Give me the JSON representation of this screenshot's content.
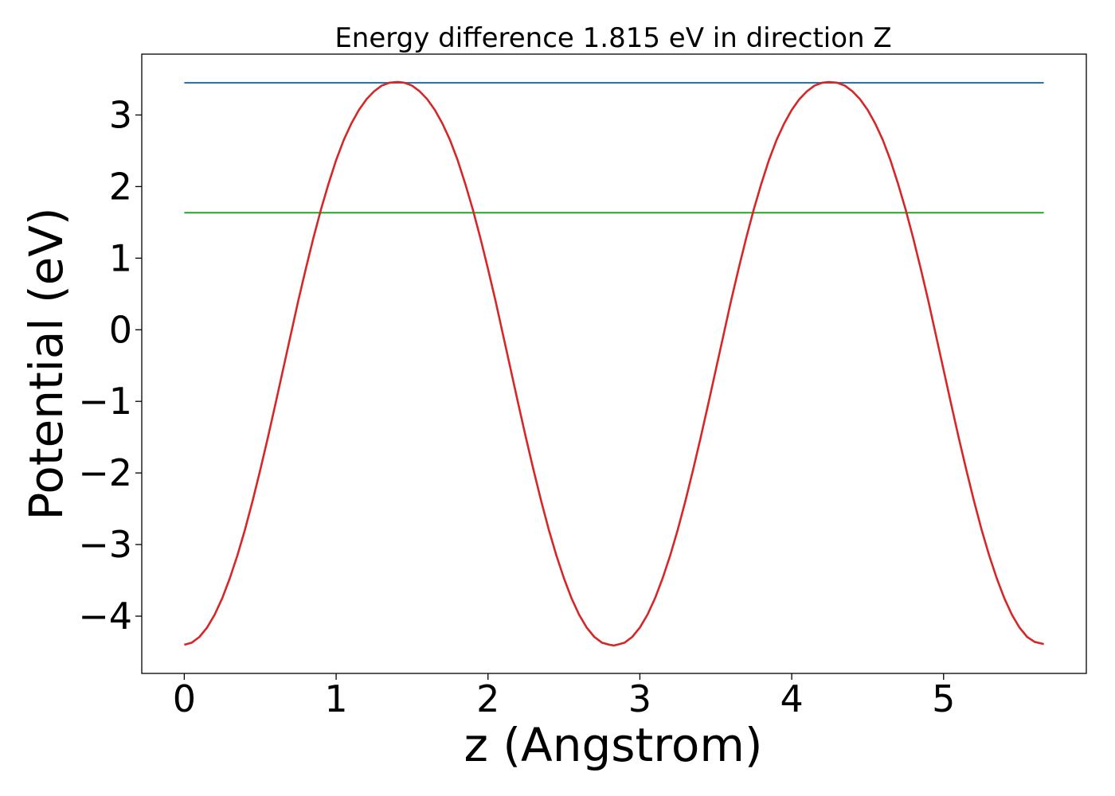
{
  "chart_data": {
    "type": "line",
    "title": "Energy difference 1.815 eV in direction Z",
    "xlabel": "z (Angstrom)",
    "ylabel": "Potential (eV)",
    "xlim": [
      -0.28,
      5.94
    ],
    "ylim": [
      -4.8,
      3.85
    ],
    "x_ticks": [
      0,
      1,
      2,
      3,
      4,
      5
    ],
    "x_tick_labels": [
      "0",
      "1",
      "2",
      "3",
      "4",
      "5"
    ],
    "y_ticks": [
      3,
      2,
      1,
      0,
      -1,
      -2,
      -3,
      -4
    ],
    "y_tick_labels": [
      "3",
      "2",
      "1",
      "0",
      "−1",
      "−2",
      "−3",
      "−4"
    ],
    "grid": false,
    "series": [
      {
        "color": "#1f77b4",
        "x": [
          0,
          5.66
        ],
        "y": [
          3.45,
          3.45
        ]
      },
      {
        "color": "#2ca02c",
        "x": [
          0,
          5.66
        ],
        "y": [
          1.635,
          1.635
        ]
      },
      {
        "color": "#d62728",
        "x": [
          0.0,
          0.05,
          0.1,
          0.15,
          0.2,
          0.25,
          0.3,
          0.35,
          0.4,
          0.45,
          0.5,
          0.55,
          0.6,
          0.65,
          0.7,
          0.75,
          0.8,
          0.85,
          0.9,
          0.95,
          1.0,
          1.05,
          1.1,
          1.15,
          1.2,
          1.25,
          1.3,
          1.35,
          1.4,
          1.415,
          1.45,
          1.5,
          1.55,
          1.6,
          1.65,
          1.7,
          1.75,
          1.8,
          1.85,
          1.9,
          1.95,
          2.0,
          2.05,
          2.1,
          2.15,
          2.2,
          2.25,
          2.3,
          2.35,
          2.4,
          2.45,
          2.5,
          2.55,
          2.6,
          2.65,
          2.7,
          2.75,
          2.8,
          2.83,
          2.85,
          2.9,
          2.95,
          3.0,
          3.05,
          3.1,
          3.15,
          3.2,
          3.25,
          3.3,
          3.35,
          3.4,
          3.45,
          3.5,
          3.55,
          3.6,
          3.65,
          3.7,
          3.75,
          3.8,
          3.85,
          3.9,
          3.95,
          4.0,
          4.05,
          4.1,
          4.15,
          4.2,
          4.245,
          4.3,
          4.35,
          4.4,
          4.45,
          4.5,
          4.55,
          4.6,
          4.65,
          4.7,
          4.75,
          4.8,
          4.85,
          4.9,
          4.95,
          5.0,
          5.05,
          5.1,
          5.15,
          5.2,
          5.25,
          5.3,
          5.35,
          5.4,
          5.45,
          5.5,
          5.55,
          5.6,
          5.66
        ],
        "y": [
          -4.4,
          -4.37,
          -4.29,
          -4.16,
          -3.98,
          -3.75,
          -3.47,
          -3.15,
          -2.79,
          -2.39,
          -1.96,
          -1.51,
          -1.04,
          -0.56,
          -0.08,
          0.4,
          0.85,
          1.28,
          1.68,
          2.04,
          2.37,
          2.65,
          2.88,
          3.07,
          3.22,
          3.33,
          3.41,
          3.45,
          3.46,
          3.46,
          3.45,
          3.41,
          3.33,
          3.22,
          3.07,
          2.88,
          2.65,
          2.37,
          2.04,
          1.68,
          1.28,
          0.85,
          0.4,
          -0.08,
          -0.56,
          -1.04,
          -1.51,
          -1.96,
          -2.39,
          -2.79,
          -3.15,
          -3.47,
          -3.75,
          -3.98,
          -4.16,
          -4.29,
          -4.37,
          -4.4,
          -4.41,
          -4.4,
          -4.37,
          -4.29,
          -4.16,
          -3.98,
          -3.75,
          -3.47,
          -3.15,
          -2.79,
          -2.39,
          -1.96,
          -1.51,
          -1.04,
          -0.56,
          -0.08,
          0.4,
          0.85,
          1.28,
          1.68,
          2.04,
          2.37,
          2.65,
          2.88,
          3.07,
          3.22,
          3.33,
          3.41,
          3.45,
          3.46,
          3.45,
          3.41,
          3.33,
          3.22,
          3.07,
          2.88,
          2.65,
          2.37,
          2.04,
          1.68,
          1.28,
          0.85,
          0.4,
          -0.08,
          -0.56,
          -1.04,
          -1.51,
          -1.96,
          -2.39,
          -2.79,
          -3.15,
          -3.47,
          -3.75,
          -3.98,
          -4.16,
          -4.29,
          -4.36,
          -4.39
        ]
      }
    ]
  }
}
